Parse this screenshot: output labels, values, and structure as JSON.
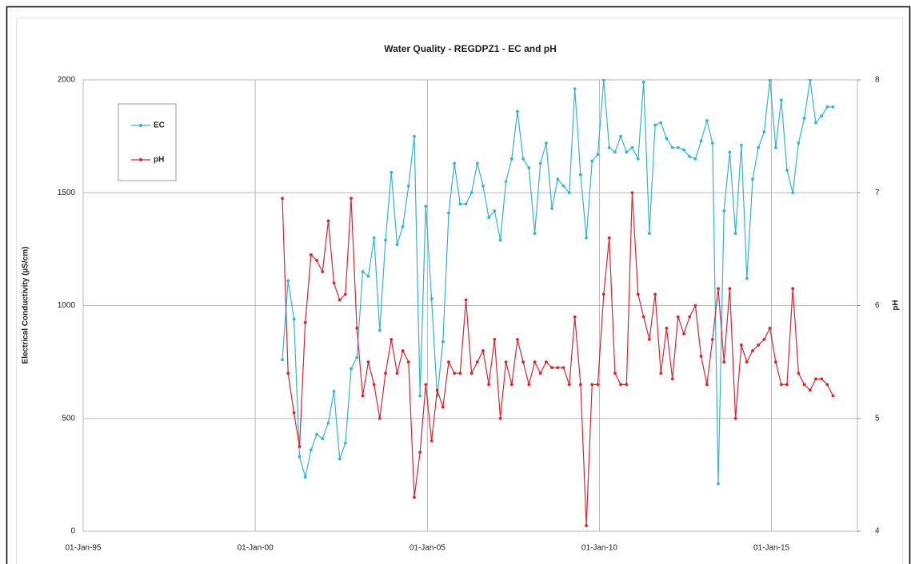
{
  "chart_data": {
    "type": "line",
    "title": "Water Quality - REGDPZ1 - EC and pH",
    "y_label": "Electrical Conductivity (µS/cm)",
    "y2_label": "pH",
    "x": [
      "2000-10-15",
      "2000-12-15",
      "2001-02-15",
      "2001-04-15",
      "2001-06-15",
      "2001-08-15",
      "2001-10-15",
      "2001-12-15",
      "2002-02-15",
      "2002-04-15",
      "2002-06-15",
      "2002-08-15",
      "2002-10-15",
      "2002-12-15",
      "2003-02-15",
      "2003-04-15",
      "2003-06-15",
      "2003-08-15",
      "2003-10-15",
      "2003-12-15",
      "2004-02-15",
      "2004-04-15",
      "2004-06-15",
      "2004-08-15",
      "2004-10-15",
      "2004-12-15",
      "2005-02-15",
      "2005-04-15",
      "2005-06-15",
      "2005-08-15",
      "2005-10-15",
      "2005-12-15",
      "2006-02-15",
      "2006-04-15",
      "2006-06-15",
      "2006-08-15",
      "2006-10-15",
      "2006-12-15",
      "2007-02-15",
      "2007-04-15",
      "2007-06-15",
      "2007-08-15",
      "2007-10-15",
      "2007-12-15",
      "2008-02-15",
      "2008-04-15",
      "2008-06-15",
      "2008-08-15",
      "2008-10-15",
      "2008-12-15",
      "2009-02-15",
      "2009-04-15",
      "2009-06-15",
      "2009-08-15",
      "2009-10-15",
      "2009-12-15",
      "2010-02-15",
      "2010-04-15",
      "2010-06-15",
      "2010-08-15",
      "2010-10-15",
      "2010-12-15",
      "2011-02-15",
      "2011-04-15",
      "2011-06-15",
      "2011-08-15",
      "2011-10-15",
      "2011-12-15",
      "2012-02-15",
      "2012-04-15",
      "2012-06-15",
      "2012-08-15",
      "2012-10-15",
      "2012-12-15",
      "2013-02-15",
      "2013-04-15",
      "2013-06-15",
      "2013-08-15",
      "2013-10-15",
      "2013-12-15",
      "2014-02-15",
      "2014-04-15",
      "2014-06-15",
      "2014-08-15",
      "2014-10-15",
      "2014-12-15",
      "2015-02-15",
      "2015-04-15",
      "2015-06-15",
      "2015-08-15",
      "2015-10-15",
      "2015-12-15",
      "2016-02-15",
      "2016-04-15",
      "2016-06-15",
      "2016-08-15",
      "2016-10-15"
    ],
    "series": [
      {
        "name": "EC",
        "color": "#31b6d4",
        "values": [
          760,
          1110,
          940,
          330,
          240,
          360,
          430,
          410,
          480,
          620,
          320,
          390,
          720,
          770,
          1150,
          1130,
          1300,
          890,
          1290,
          1590,
          1270,
          1350,
          1530,
          1750,
          600,
          1440,
          1030,
          600,
          840,
          1410,
          1630,
          1450,
          1450,
          1500,
          1630,
          1530,
          1390,
          1420,
          1290,
          1550,
          1650,
          1860,
          1650,
          1610,
          1320,
          1630,
          1720,
          1430,
          1560,
          1530,
          1500,
          1960,
          1580,
          1300,
          1640,
          1670,
          2000,
          1700,
          1680,
          1750,
          1680,
          1700,
          1650,
          1990,
          1320,
          1800,
          1810,
          1740,
          1700,
          1700,
          1690,
          1660,
          1650,
          1730,
          1820,
          1720,
          210,
          1420,
          1680,
          1320,
          1710,
          1120,
          1560,
          1700,
          1770,
          2000,
          1700,
          1910,
          1600,
          1500,
          1720,
          1830,
          2000,
          1810,
          1840,
          1880,
          1880
        ]
      },
      {
        "name": "pH",
        "color": "#e3232c",
        "axis": "y2",
        "values": [
          6.95,
          5.4,
          5.05,
          4.75,
          5.85,
          6.45,
          6.4,
          6.3,
          6.75,
          6.2,
          6.05,
          6.1,
          6.95,
          5.8,
          5.2,
          5.5,
          5.3,
          5.0,
          5.4,
          5.7,
          5.4,
          5.6,
          5.5,
          4.3,
          4.7,
          5.3,
          4.8,
          5.25,
          5.1,
          5.5,
          5.4,
          5.4,
          6.05,
          5.4,
          5.5,
          5.6,
          5.3,
          5.7,
          5.0,
          5.5,
          5.3,
          5.7,
          5.5,
          5.3,
          5.5,
          5.4,
          5.5,
          5.45,
          5.45,
          5.45,
          5.3,
          5.9,
          5.3,
          4.05,
          5.3,
          5.3,
          6.1,
          6.6,
          5.4,
          5.3,
          5.3,
          7.0,
          6.1,
          5.9,
          5.7,
          6.1,
          5.4,
          5.8,
          5.35,
          5.9,
          5.75,
          5.9,
          6.0,
          5.55,
          5.3,
          5.7,
          6.15,
          5.5,
          6.15,
          5.0,
          5.65,
          5.5,
          5.6,
          5.65,
          5.7,
          5.8,
          5.5,
          5.3,
          5.3,
          6.15,
          5.4,
          5.3,
          5.25,
          5.35,
          5.35,
          5.3,
          5.2
        ]
      }
    ],
    "xlim": [
      "1995-01-01",
      "2017-07-01"
    ],
    "xticks": [
      {
        "value": "1995-01-01",
        "label": "01-Jan-95"
      },
      {
        "value": "2000-01-01",
        "label": "01-Jan-00"
      },
      {
        "value": "2005-01-01",
        "label": "01-Jan-05"
      },
      {
        "value": "2010-01-01",
        "label": "01-Jan-10"
      },
      {
        "value": "2015-01-01",
        "label": "01-Jan-15"
      }
    ],
    "ylim": [
      0,
      2000
    ],
    "yticks": [
      0,
      500,
      1000,
      1500,
      2000
    ],
    "y2lim": [
      4,
      8
    ],
    "y2ticks": [
      4,
      5,
      6,
      7,
      8
    ],
    "grid": true,
    "legend": "upper left"
  }
}
